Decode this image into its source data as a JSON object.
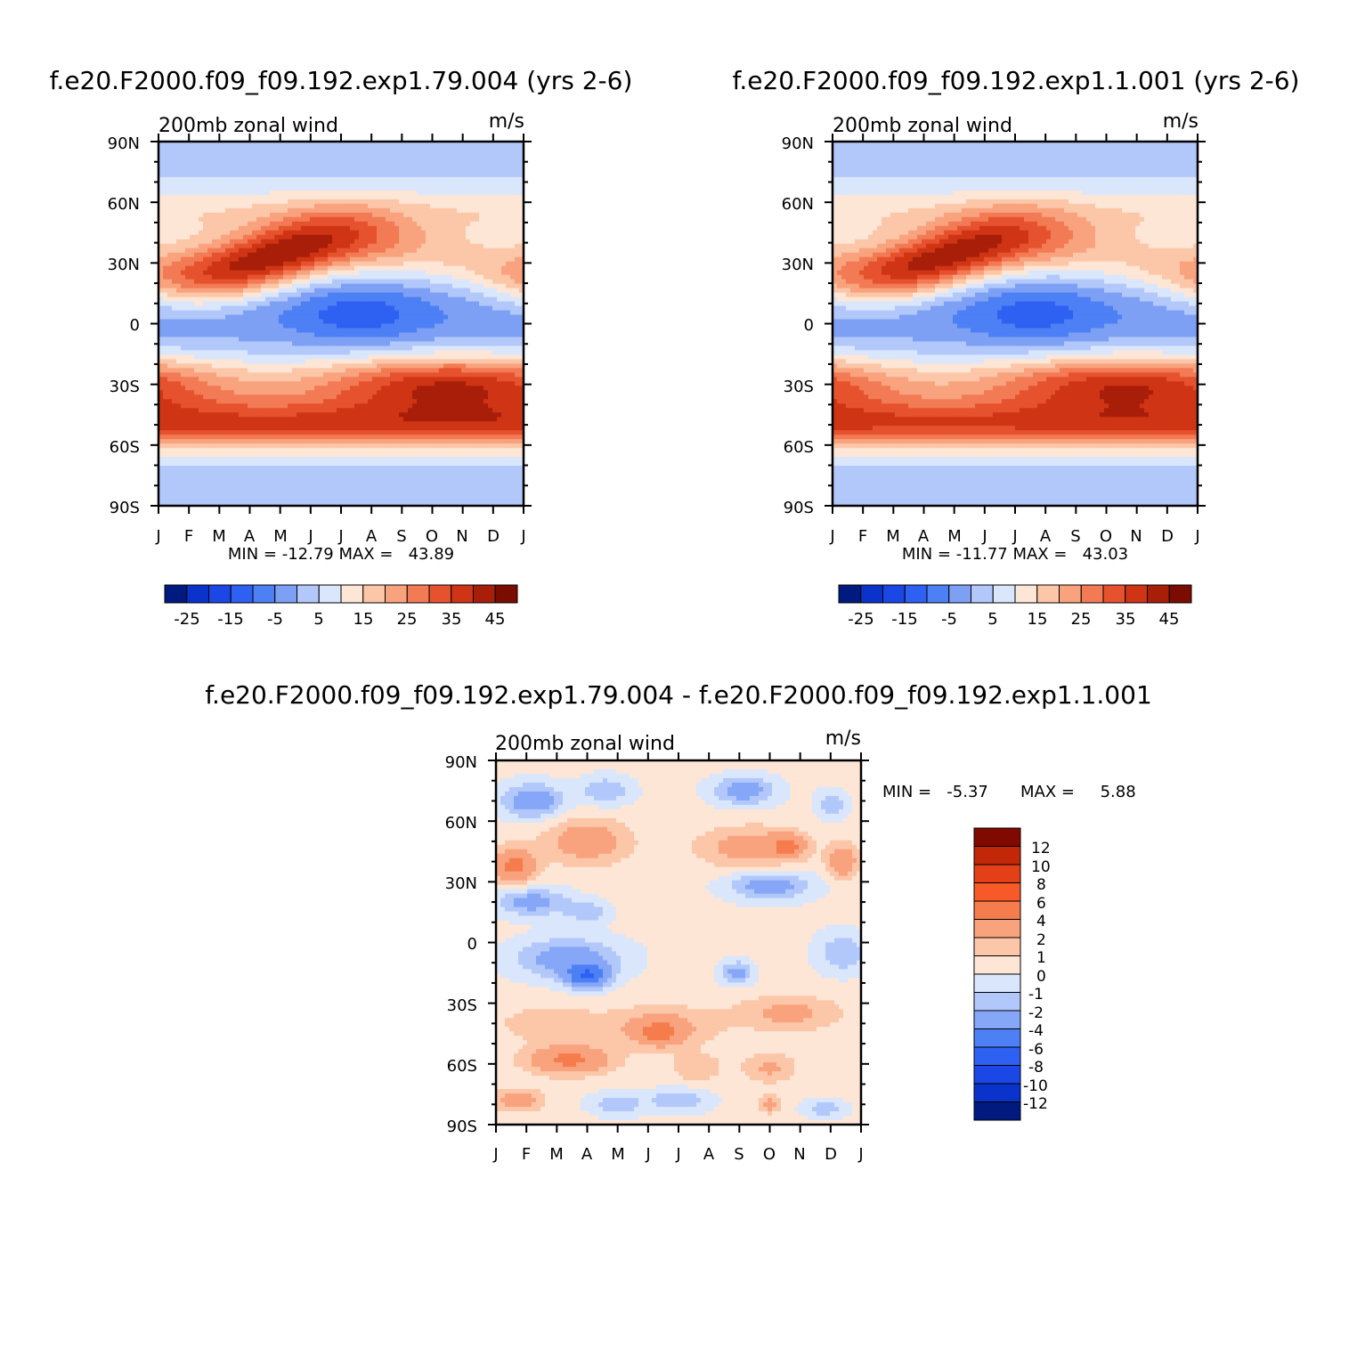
{
  "chart_data": [
    {
      "type": "heatmap",
      "title": "f.e20.F2000.f09_f09.192.exp1.79.004 (yrs 2-6)",
      "subtitle_left": "200mb zonal wind",
      "subtitle_right": "m/s",
      "x_ticks": [
        "J",
        "F",
        "M",
        "A",
        "M",
        "J",
        "J",
        "A",
        "S",
        "O",
        "N",
        "D",
        "J"
      ],
      "y_ticks": [
        "90N",
        "60N",
        "30N",
        "0",
        "30S",
        "60S",
        "90S"
      ],
      "stats": "MIN = -12.79 MAX =   43.89",
      "colorbar_labels": [
        "-25",
        "-15",
        "-5",
        "5",
        "15",
        "25",
        "35",
        "45"
      ],
      "colorbar_colors": [
        "#001a80",
        "#0a33cc",
        "#1a47e6",
        "#2e60f2",
        "#4d7ff5",
        "#7da0f5",
        "#b2c8fa",
        "#d9e6fc",
        "#fde6d6",
        "#fcc6a8",
        "#f9a27e",
        "#f27a54",
        "#e6522e",
        "#cf3514",
        "#a81e08",
        "#7a0c02"
      ],
      "field": "mean"
    },
    {
      "type": "heatmap",
      "title": "f.e20.F2000.f09_f09.192.exp1.1.001 (yrs 2-6)",
      "subtitle_left": "200mb zonal wind",
      "subtitle_right": "m/s",
      "x_ticks": [
        "J",
        "F",
        "M",
        "A",
        "M",
        "J",
        "J",
        "A",
        "S",
        "O",
        "N",
        "D",
        "J"
      ],
      "y_ticks": [
        "90N",
        "60N",
        "30N",
        "0",
        "30S",
        "60S",
        "90S"
      ],
      "stats": "MIN = -11.77 MAX =   43.03",
      "colorbar_labels": [
        "-25",
        "-15",
        "-5",
        "5",
        "15",
        "25",
        "35",
        "45"
      ],
      "colorbar_colors": [
        "#001a80",
        "#0a33cc",
        "#1a47e6",
        "#2e60f2",
        "#4d7ff5",
        "#7da0f5",
        "#b2c8fa",
        "#d9e6fc",
        "#fde6d6",
        "#fcc6a8",
        "#f9a27e",
        "#f27a54",
        "#e6522e",
        "#cf3514",
        "#a81e08",
        "#7a0c02"
      ],
      "field": "mean"
    },
    {
      "type": "heatmap",
      "title": "f.e20.F2000.f09_f09.192.exp1.79.004 - f.e20.F2000.f09_f09.192.exp1.1.001",
      "subtitle_left": "200mb zonal wind",
      "subtitle_right": "m/s",
      "x_ticks": [
        "J",
        "F",
        "M",
        "A",
        "M",
        "J",
        "J",
        "A",
        "S",
        "O",
        "N",
        "D",
        "J"
      ],
      "y_ticks": [
        "90N",
        "60N",
        "30N",
        "0",
        "30S",
        "60S",
        "90S"
      ],
      "stats_min": "MIN =   -5.37",
      "stats_max": "MAX =     5.88",
      "colorbar_labels": [
        "12",
        "10",
        "8",
        "6",
        "4",
        "2",
        "1",
        "0",
        "-1",
        "-2",
        "-4",
        "-6",
        "-8",
        "-10",
        "-12"
      ],
      "colorbar_colors": [
        "#800a02",
        "#c22808",
        "#e34018",
        "#f75a28",
        "#f57c4c",
        "#f9a27e",
        "#fcc6a8",
        "#fde6d6",
        "#d9e6fc",
        "#b2c8fa",
        "#86a6f7",
        "#4d7ff5",
        "#2e60f2",
        "#1a47e6",
        "#0a33cc",
        "#001a80"
      ],
      "field": "diff"
    }
  ]
}
